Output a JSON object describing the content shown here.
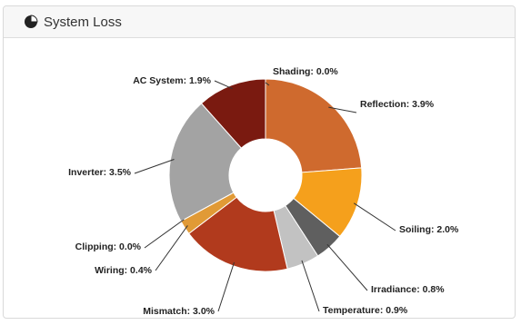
{
  "panel": {
    "title": "System Loss",
    "icon": "pie-chart-icon"
  },
  "chart_data": {
    "type": "pie",
    "donut": true,
    "title": "System Loss",
    "slices": [
      {
        "name": "Shading",
        "value": 0.0,
        "label": "Shading: 0.0%",
        "color": "#e8e8e8"
      },
      {
        "name": "Reflection",
        "value": 3.9,
        "label": "Reflection: 3.9%",
        "color": "#cf6a2e"
      },
      {
        "name": "Soiling",
        "value": 2.0,
        "label": "Soiling: 2.0%",
        "color": "#f5a01c"
      },
      {
        "name": "Irradiance",
        "value": 0.8,
        "label": "Irradiance: 0.8%",
        "color": "#5f5f5f"
      },
      {
        "name": "Temperature",
        "value": 0.9,
        "label": "Temperature: 0.9%",
        "color": "#c2c2c2"
      },
      {
        "name": "Mismatch",
        "value": 3.0,
        "label": "Mismatch: 3.0%",
        "color": "#b13a1d"
      },
      {
        "name": "Wiring",
        "value": 0.4,
        "label": "Wiring: 0.4%",
        "color": "#e19a36"
      },
      {
        "name": "Clipping",
        "value": 0.0,
        "label": "Clipping: 0.0%",
        "color": "#e19a36"
      },
      {
        "name": "Inverter",
        "value": 3.5,
        "label": "Inverter: 3.5%",
        "color": "#a3a3a3"
      },
      {
        "name": "AC System",
        "value": 1.9,
        "label": "AC System: 1.9%",
        "color": "#7a1a10"
      }
    ]
  }
}
